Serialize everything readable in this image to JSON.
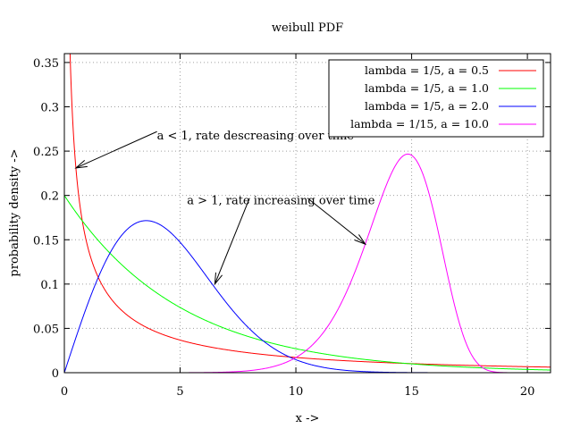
{
  "chart_data": {
    "type": "line",
    "title": "weibull PDF",
    "xlabel": "x ->",
    "ylabel": "probability density ->",
    "xlim": [
      0,
      21
    ],
    "ylim": [
      0,
      0.36
    ],
    "grid": true,
    "legend_position": "top-right",
    "xticks": [
      0,
      5,
      10,
      15,
      20
    ],
    "yticks": [
      0,
      0.05,
      0.1,
      0.15,
      0.2,
      0.25,
      0.3,
      0.35
    ],
    "xtick_labels": [
      "0",
      "5",
      "10",
      "15",
      "20"
    ],
    "ytick_labels": [
      "0",
      "0.05",
      "0.1",
      "0.15",
      "0.2",
      "0.25",
      "0.3",
      "0.35"
    ],
    "series": [
      {
        "name": "lambda = 1/5, a = 0.5",
        "lambda": 0.2,
        "a": 0.5,
        "color": "#ff0000"
      },
      {
        "name": "lambda = 1/5, a = 1.0",
        "lambda": 0.2,
        "a": 1.0,
        "color": "#00ff00"
      },
      {
        "name": "lambda = 1/5, a = 2.0",
        "lambda": 0.2,
        "a": 2.0,
        "color": "#0000ff"
      },
      {
        "name": "lambda = 1/15, a = 10.0",
        "lambda": 0.0667,
        "a": 10.0,
        "color": "#ff00ff"
      }
    ],
    "annotations": [
      {
        "text": "a < 1, rate descreasing over time",
        "x": 4.0,
        "y": 0.268,
        "arrows": [
          {
            "from": [
              4.0,
              0.272
            ],
            "to": [
              0.5,
              0.231
            ]
          }
        ]
      },
      {
        "text": "a > 1, rate increasing over time",
        "x": 5.3,
        "y": 0.195,
        "arrows": [
          {
            "from": [
              8.0,
              0.197
            ],
            "to": [
              6.5,
              0.1
            ]
          },
          {
            "from": [
              10.5,
              0.197
            ],
            "to": [
              13.0,
              0.145
            ]
          }
        ]
      }
    ]
  }
}
